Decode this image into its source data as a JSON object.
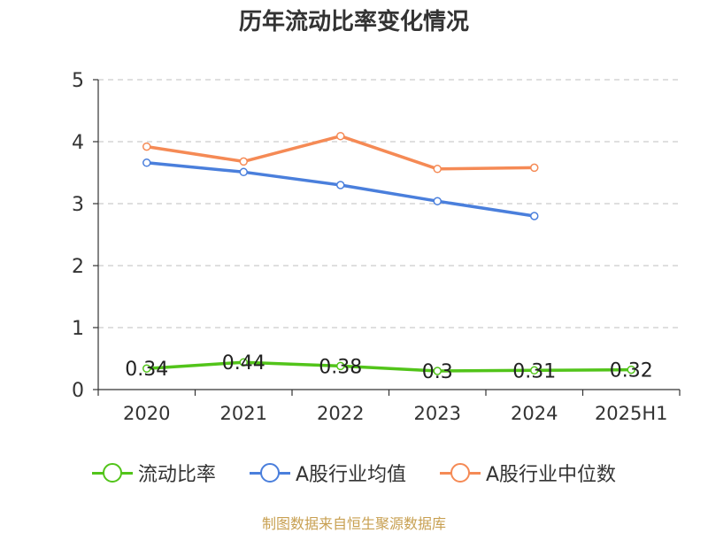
{
  "chart_data": {
    "type": "line",
    "title": "历年流动比率变化情况",
    "categories": [
      "2020",
      "2021",
      "2022",
      "2023",
      "2024",
      "2025H1"
    ],
    "ylim": [
      0,
      5
    ],
    "yticks": [
      0,
      1,
      2,
      3,
      4,
      5
    ],
    "grid": true,
    "legend_position": "bottom",
    "series": [
      {
        "name": "流动比率",
        "color": "#52c41a",
        "values": [
          0.34,
          0.44,
          0.38,
          0.3,
          0.31,
          0.32
        ],
        "labels": [
          "0.34",
          "0.44",
          "0.38",
          "0.3",
          "0.31",
          "0.32"
        ]
      },
      {
        "name": "A股行业均值",
        "color": "#4a7fdc",
        "values": [
          3.66,
          3.51,
          3.3,
          3.04,
          2.8,
          null
        ]
      },
      {
        "name": "A股行业中位数",
        "color": "#f58a55",
        "values": [
          3.92,
          3.68,
          4.09,
          3.56,
          3.58,
          null
        ]
      }
    ]
  },
  "source": "制图数据来自恒生聚源数据库"
}
